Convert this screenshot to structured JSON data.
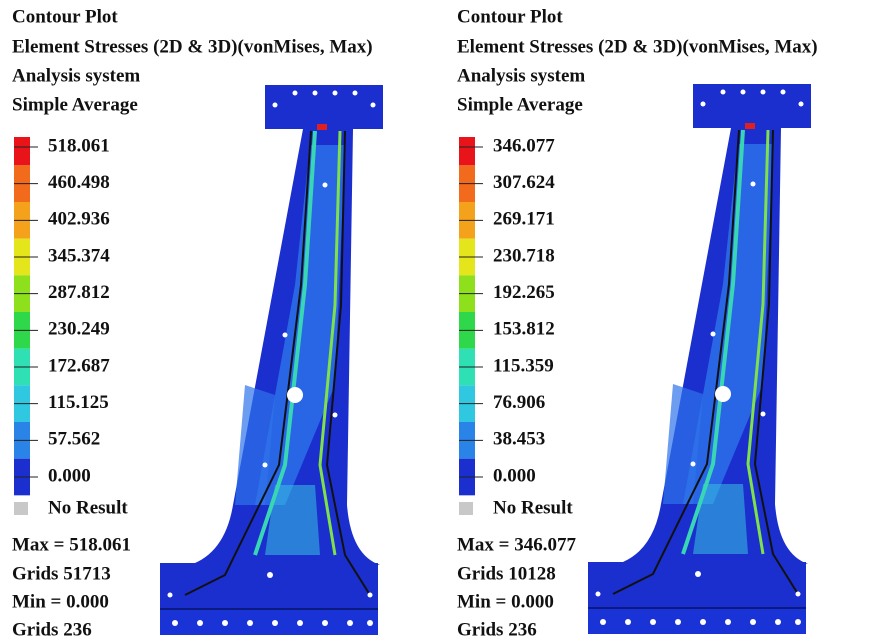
{
  "panels": [
    {
      "title": [
        "Contour Plot",
        "Element Stresses (2D & 3D)(vonMises, Max)",
        "Analysis system",
        "Simple Average"
      ],
      "legend": [
        "518.061",
        "460.498",
        "402.936",
        "345.374",
        "287.812",
        "230.249",
        "172.687",
        "115.125",
        "57.562",
        "0.000"
      ],
      "no_result": "No Result",
      "footer": [
        "Max = 518.061",
        "Grids 51713",
        "Min = 0.000",
        "Grids 236"
      ]
    },
    {
      "title": [
        "Contour Plot",
        "Element Stresses (2D & 3D)(vonMises, Max)",
        "Analysis system",
        "Simple Average"
      ],
      "legend": [
        "346.077",
        "307.624",
        "269.171",
        "230.718",
        "192.265",
        "153.812",
        "115.359",
        "76.906",
        "38.453",
        "0.000"
      ],
      "no_result": "No Result",
      "footer": [
        "Max = 346.077",
        "Grids 10128",
        "Min = 0.000",
        "Grids 236"
      ]
    }
  ]
}
